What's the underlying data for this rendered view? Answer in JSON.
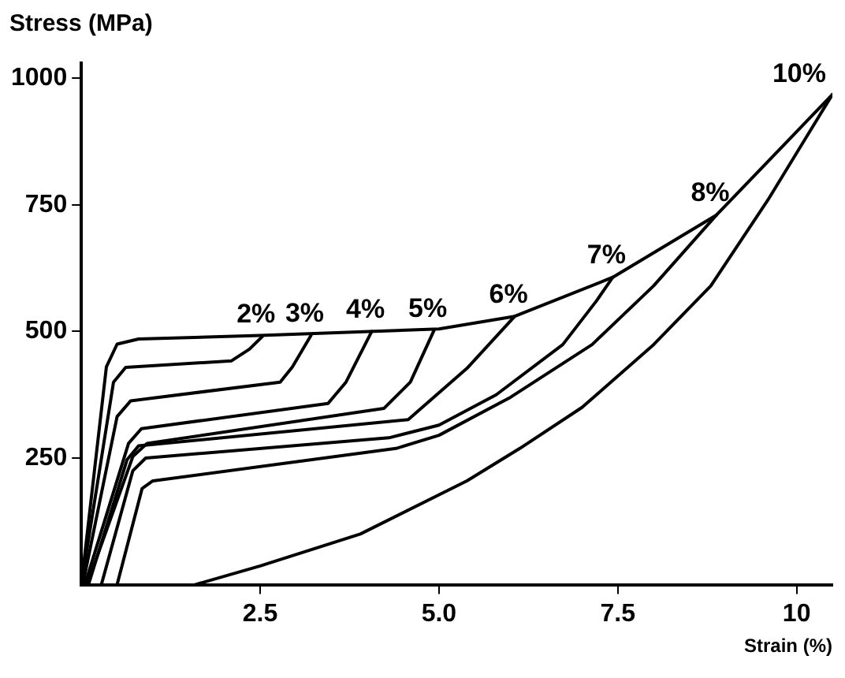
{
  "chart_data": {
    "type": "line",
    "xlabel": "Strain (%)",
    "ylabel": "Stress (MPa)",
    "xlim": [
      0,
      10.5
    ],
    "ylim": [
      0,
      1030
    ],
    "xticks": [
      2.5,
      {
        "value": 5,
        "label": "5.0"
      },
      7.5,
      10
    ],
    "yticks": [
      250,
      500,
      750,
      1000
    ],
    "grid": false,
    "legend": false,
    "marker": "none",
    "line_style": "solid",
    "series": [
      {
        "color": "#000000",
        "x": [
          0,
          0.35,
          0.5,
          0.8,
          2.5,
          5.0,
          6.06,
          7.43,
          8.88,
          10.5
        ],
        "values": [
          0,
          430,
          475,
          485,
          492,
          505,
          530,
          607,
          730,
          968
        ]
      },
      {
        "color": "#000000",
        "x": [
          2.53,
          2.35,
          2.1,
          0.62,
          0.45,
          0
        ],
        "values": [
          490,
          465,
          442,
          429,
          400,
          0
        ]
      },
      {
        "color": "#000000",
        "x": [
          3.21,
          2.95,
          2.78,
          0.69,
          0.5,
          0.02
        ],
        "values": [
          492,
          430,
          400,
          363,
          332,
          0
        ]
      },
      {
        "color": "#000000",
        "x": [
          4.06,
          3.7,
          3.45,
          0.84,
          0.66,
          0.05
        ],
        "values": [
          500,
          400,
          358,
          308,
          279,
          0
        ]
      },
      {
        "color": "#000000",
        "x": [
          4.93,
          4.6,
          4.23,
          0.92,
          0.72,
          0.08
        ],
        "values": [
          502,
          400,
          348,
          279,
          253,
          0
        ]
      },
      {
        "color": "#000000",
        "x": [
          6.06,
          5.39,
          4.57,
          0.8,
          0.64,
          0.1
        ],
        "values": [
          530,
          427,
          326,
          274,
          247,
          0
        ]
      },
      {
        "color": "#000000",
        "x": [
          7.43,
          7.2,
          6.73,
          5.8,
          5.0,
          4.3,
          0.9,
          0.72,
          0.28
        ],
        "values": [
          607,
          560,
          474,
          375,
          315,
          290,
          250,
          225,
          0
        ]
      },
      {
        "color": "#000000",
        "x": [
          8.88,
          8.0,
          7.14,
          6.0,
          5.0,
          4.4,
          1.0,
          0.85,
          0.5
        ],
        "values": [
          730,
          590,
          474,
          370,
          295,
          269,
          205,
          190,
          0
        ]
      },
      {
        "color": "#000000",
        "x": [
          10.5,
          9.6,
          8.8,
          8.0,
          7.0,
          6.13,
          5.39,
          3.9,
          2.5,
          1.59
        ],
        "values": [
          968,
          760,
          590,
          474,
          350,
          269,
          205,
          100,
          37,
          0
        ]
      }
    ],
    "annotations": [
      {
        "text": "2%",
        "x": 2.53,
        "y": 490
      },
      {
        "text": "3%",
        "x": 3.21,
        "y": 492
      },
      {
        "text": "4%",
        "x": 4.06,
        "y": 500
      },
      {
        "text": "5%",
        "x": 4.93,
        "y": 502
      },
      {
        "text": "6%",
        "x": 6.06,
        "y": 530
      },
      {
        "text": "7%",
        "x": 7.43,
        "y": 607
      },
      {
        "text": "8%",
        "x": 8.88,
        "y": 730
      },
      {
        "text": "10%",
        "x": 10.5,
        "y": 968
      }
    ]
  }
}
